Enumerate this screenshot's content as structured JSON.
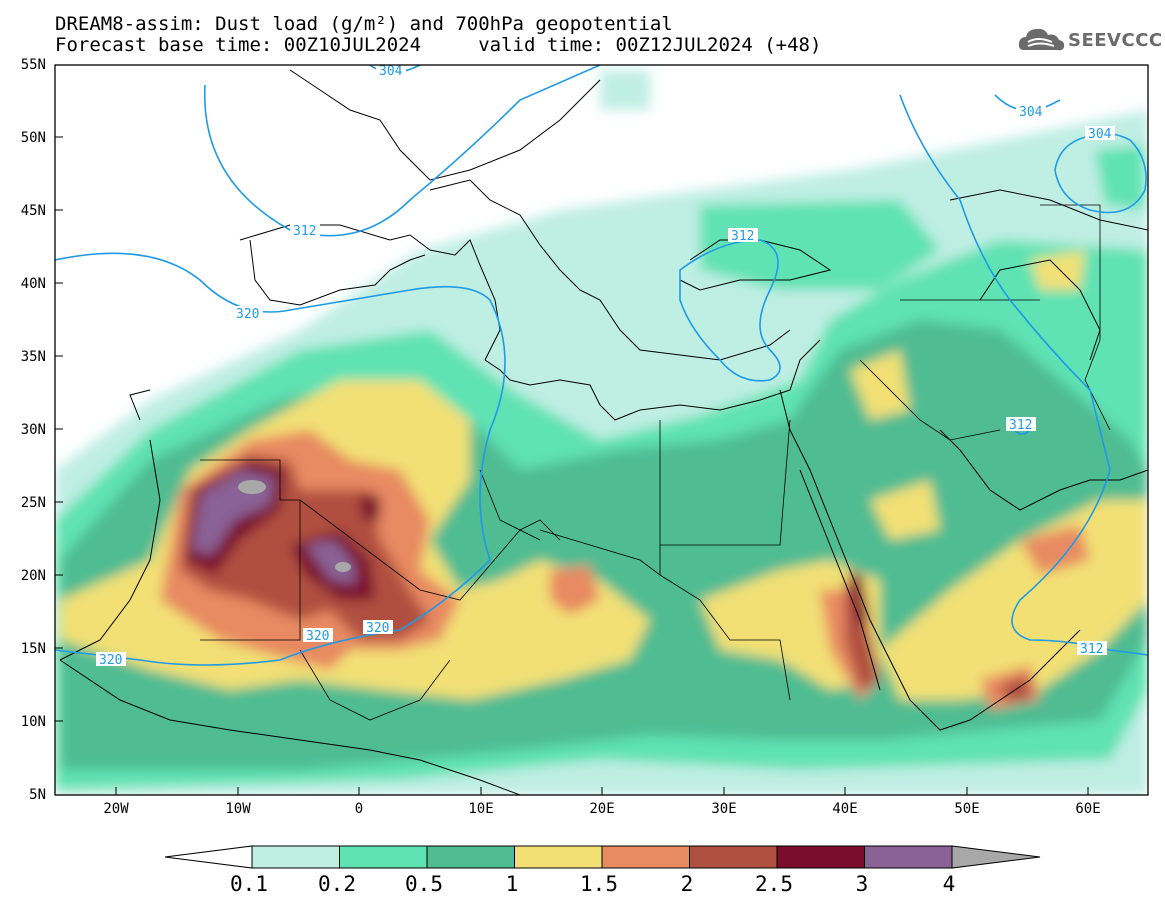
{
  "title": {
    "line1": "DREAM8-assim: Dust load (g/m²) and 700hPa geopotential",
    "line2": "Forecast base time: 00Z10JUL2024     valid time: 00Z12JUL2024 (+48)"
  },
  "logo": {
    "text": "SEEVCCC",
    "icon": "cloud-icon"
  },
  "axes": {
    "lat_labels": [
      "55N",
      "50N",
      "45N",
      "40N",
      "35N",
      "30N",
      "25N",
      "20N",
      "15N",
      "10N",
      "5N"
    ],
    "lon_labels": [
      "20W",
      "10W",
      "0",
      "10E",
      "20E",
      "30E",
      "40E",
      "50E",
      "60E"
    ]
  },
  "contour_labels": [
    "304",
    "304",
    "304",
    "312",
    "312",
    "312",
    "312",
    "320",
    "320",
    "320",
    "320"
  ],
  "colorbar": {
    "ticks": [
      "0.1",
      "0.2",
      "0.5",
      "1",
      "1.5",
      "2",
      "2.5",
      "3",
      "4"
    ],
    "colors": [
      "#bfeee3",
      "#5fe2b4",
      "#4fbc92",
      "#f2e074",
      "#e88a62",
      "#b05040",
      "#7a0c2e",
      "#8a6296",
      "#a8a8a8"
    ],
    "overflow_color": "#a8a8a8"
  },
  "colors": {
    "land": "#ffffff",
    "coast": "#000000",
    "contour": "#1f9be6"
  }
}
